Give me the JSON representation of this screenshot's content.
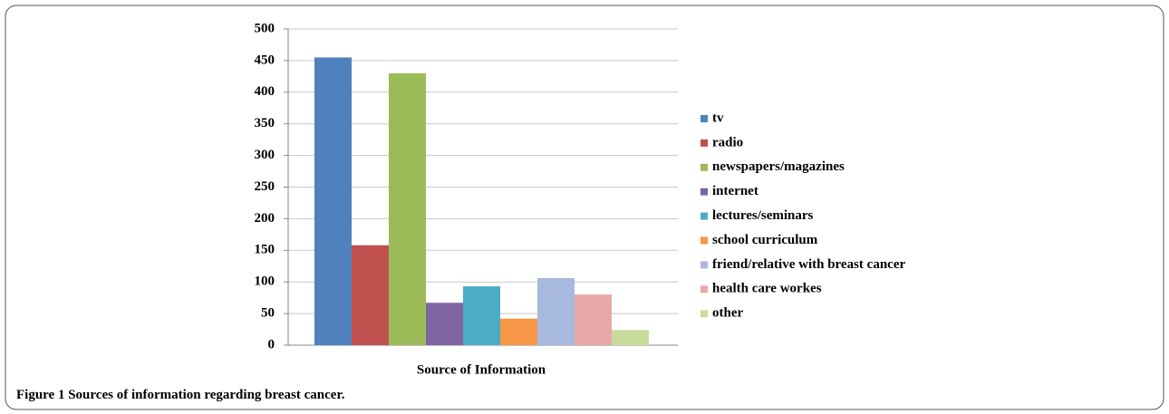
{
  "chart_data": {
    "type": "bar",
    "xlabel": "Source of Information",
    "categories": [
      "tv",
      "radio",
      "newspapers/magazines",
      "internet",
      "lectures/seminars",
      "school curriculum",
      "friend/relative with breast cancer",
      "health care workes",
      "other"
    ],
    "values": [
      455,
      158,
      430,
      67,
      93,
      42,
      106,
      80,
      24
    ],
    "colors": [
      "#4f81bd",
      "#c0504d",
      "#9bbb59",
      "#8064a2",
      "#4bacc6",
      "#f79646",
      "#a7b9de",
      "#e6a9a8",
      "#c9dc9c"
    ],
    "ylim": [
      0,
      500
    ],
    "yticks": [
      0,
      50,
      100,
      150,
      200,
      250,
      300,
      350,
      400,
      450,
      500
    ],
    "grid": true,
    "legend": "right"
  },
  "caption": {
    "label": "Figure 1",
    "text": "Sources of information regarding breast cancer."
  }
}
